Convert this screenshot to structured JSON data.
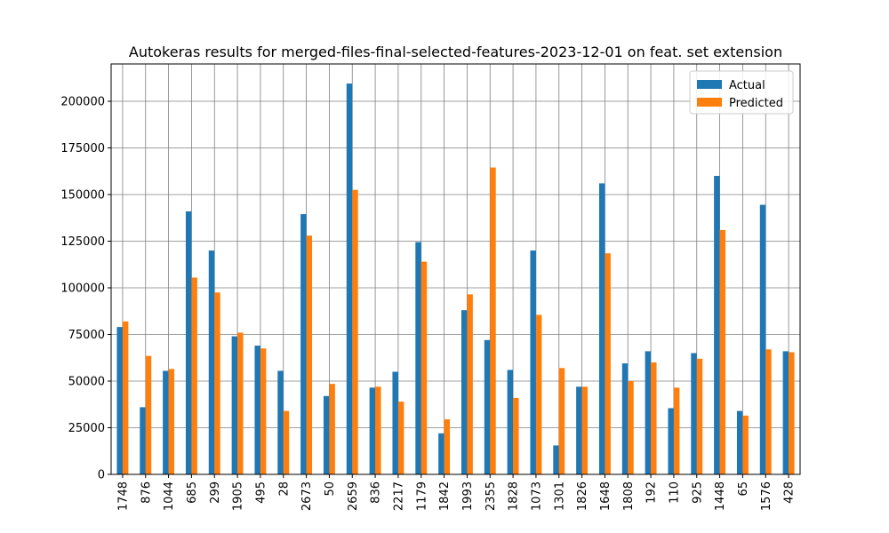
{
  "chart_data": {
    "type": "bar",
    "title": "Autokeras results for merged-files-final-selected-features-2023-12-01 on feat. set extension",
    "xlabel": "",
    "ylabel": "",
    "ylim": [
      0,
      220000
    ],
    "yticks": [
      0,
      25000,
      50000,
      75000,
      100000,
      125000,
      150000,
      175000,
      200000
    ],
    "grid": true,
    "legend_position": "top-right",
    "categories": [
      "1748",
      "876",
      "1044",
      "685",
      "299",
      "1905",
      "495",
      "28",
      "2673",
      "50",
      "2659",
      "836",
      "2217",
      "1179",
      "1842",
      "1993",
      "2355",
      "1828",
      "1073",
      "1301",
      "1826",
      "1648",
      "1808",
      "192",
      "110",
      "925",
      "1448",
      "65",
      "1576",
      "428"
    ],
    "series": [
      {
        "name": "Actual",
        "color": "#1f77b4",
        "values": [
          79000,
          36000,
          55500,
          141000,
          120000,
          74000,
          69000,
          55500,
          139500,
          42000,
          209500,
          46500,
          55000,
          124500,
          22000,
          88000,
          72000,
          56000,
          120000,
          15500,
          47000,
          156000,
          59500,
          66000,
          35500,
          65000,
          160000,
          34000,
          144500,
          66000
        ]
      },
      {
        "name": "Predicted",
        "color": "#ff7f0e",
        "values": [
          82000,
          63500,
          56500,
          105500,
          97500,
          76000,
          67500,
          34000,
          128000,
          48500,
          152500,
          47000,
          39000,
          114000,
          29500,
          96500,
          164500,
          41000,
          85500,
          57000,
          47000,
          118500,
          50000,
          60000,
          46500,
          62000,
          131000,
          31500,
          67000,
          65500
        ]
      }
    ]
  }
}
